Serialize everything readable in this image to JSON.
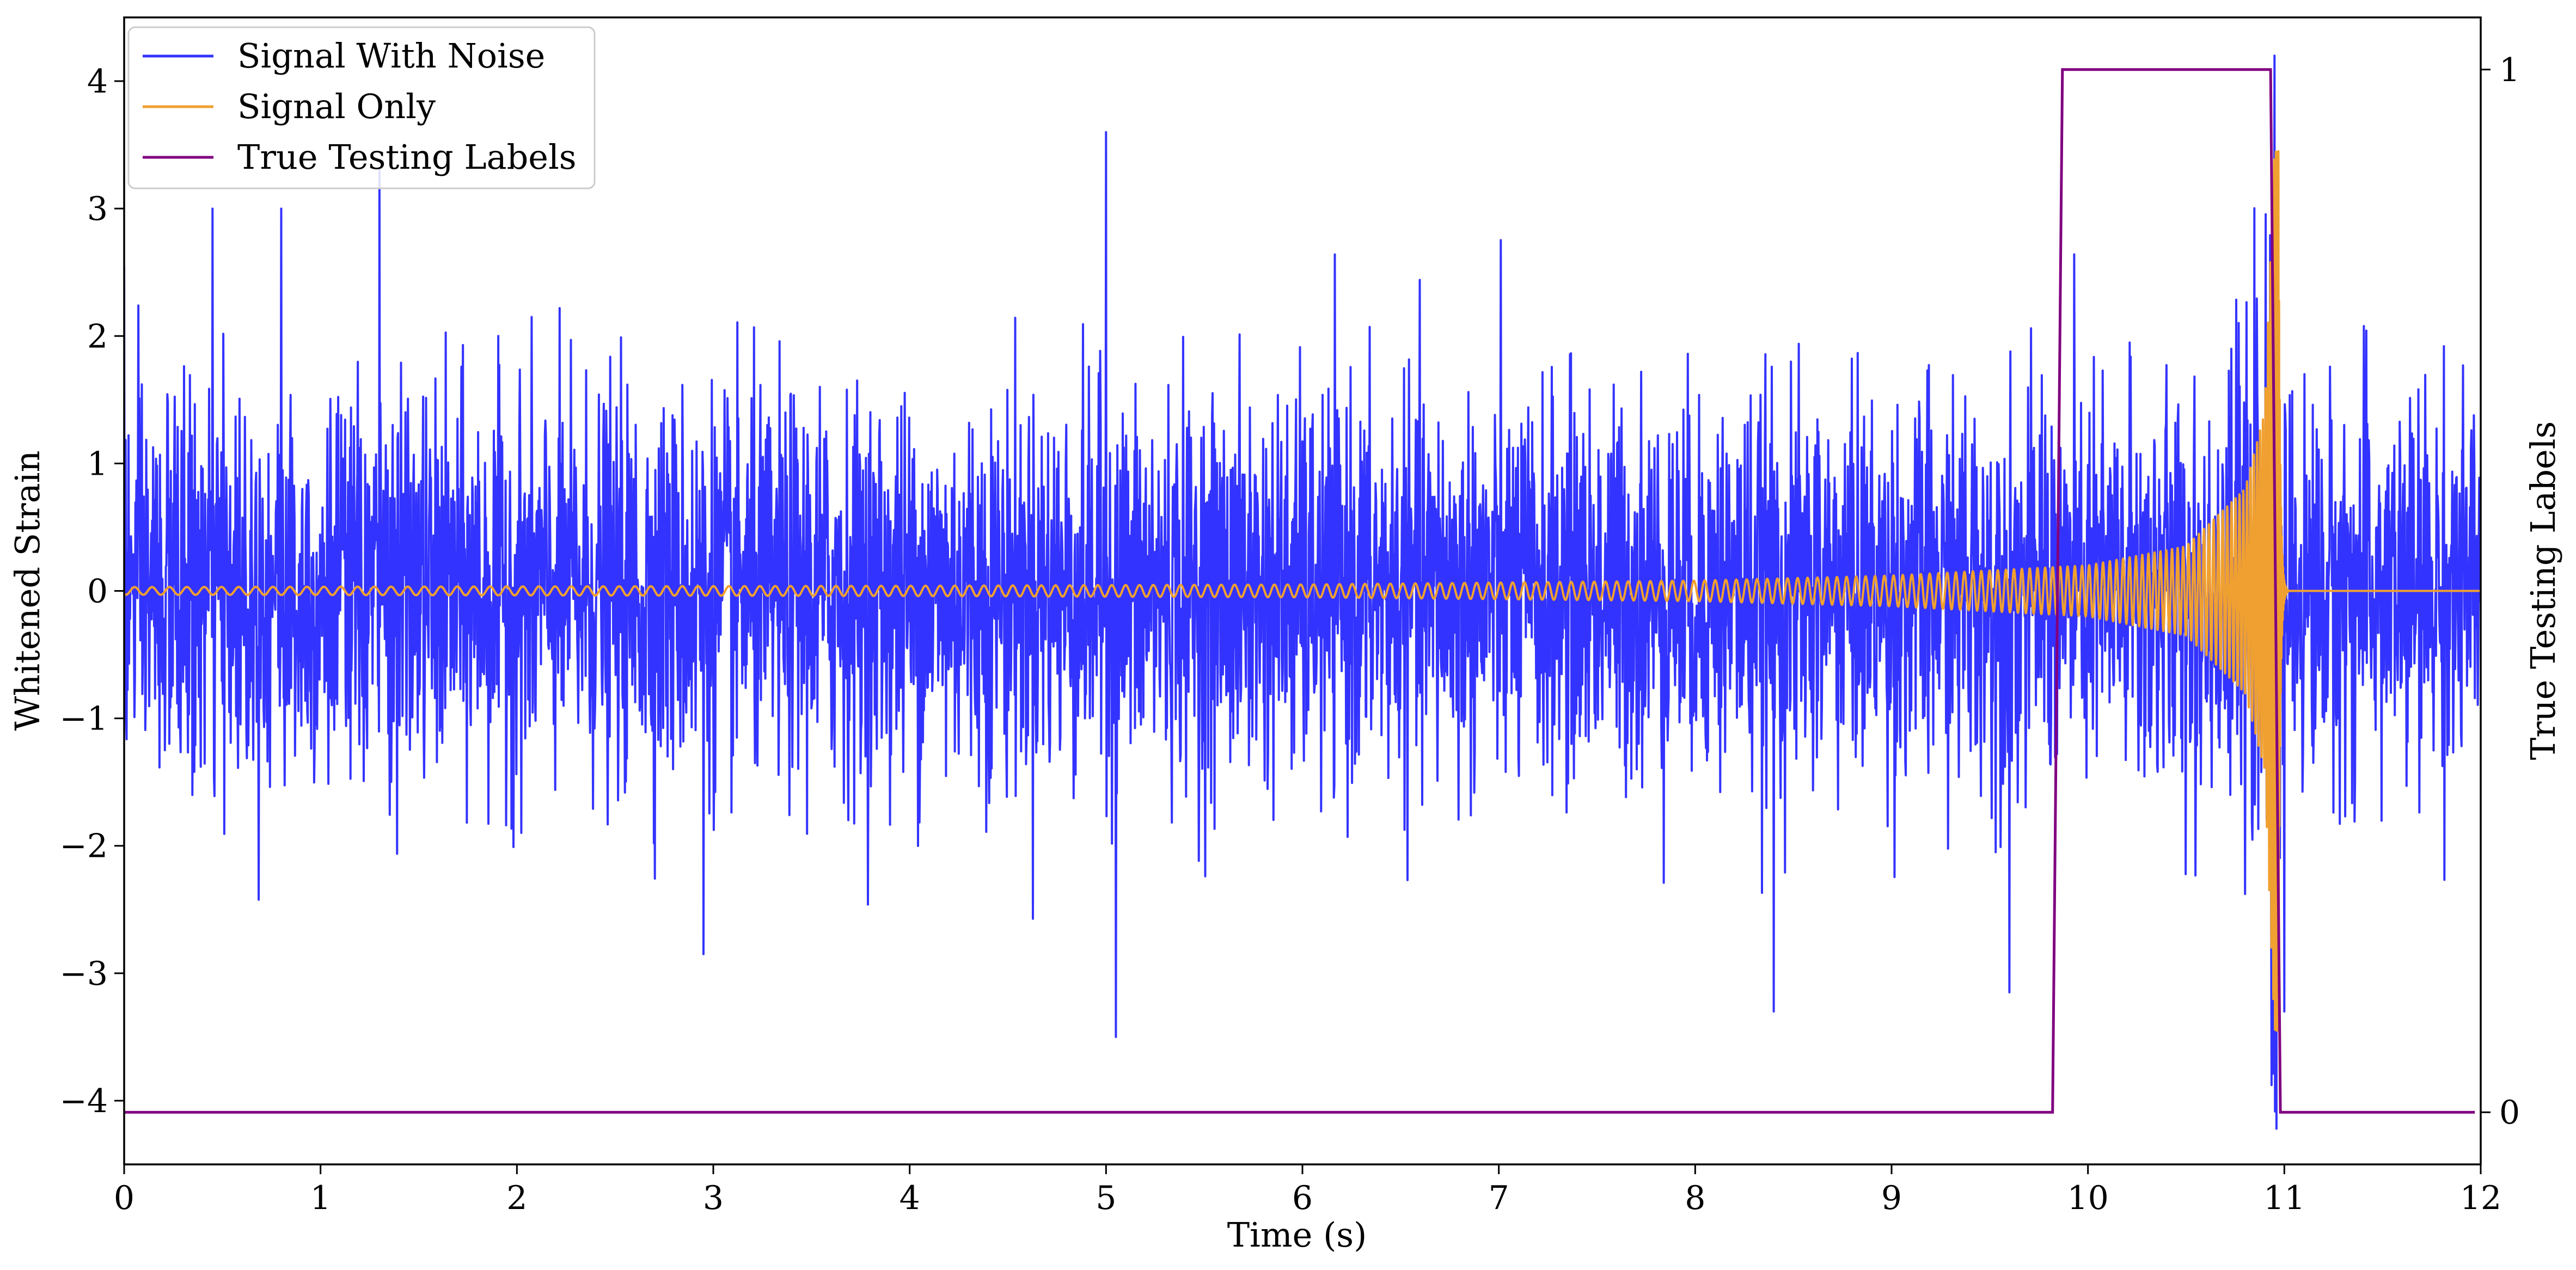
{
  "chart_data": {
    "type": "line",
    "xlabel": "Time (s)",
    "ylabel": "Whitened Strain",
    "y2label": "True Testing Labels",
    "xlim": [
      0,
      12
    ],
    "ylim": [
      -4.5,
      4.5
    ],
    "y2lim": [
      -0.05,
      1.05
    ],
    "x_ticks": [
      0,
      1,
      2,
      3,
      4,
      5,
      6,
      7,
      8,
      9,
      10,
      11,
      12
    ],
    "y_ticks": [
      -4,
      -3,
      -2,
      -1,
      0,
      1,
      2,
      3,
      4
    ],
    "y2_ticks": [
      0,
      1
    ],
    "legend_position": "upper-left",
    "grid": false,
    "series": [
      {
        "name": "Signal With Noise",
        "color": "#3333ff",
        "axis": "left",
        "sample_rate": 400,
        "noise_std": 0.75,
        "x_peaks": [
          0.0,
          0.45,
          0.8,
          1.3,
          2.95,
          5.0,
          5.05,
          8.4,
          9.6,
          10.95,
          11.0
        ],
        "y_peaks": [
          2.55,
          3.0,
          3.0,
          3.3,
          -2.85,
          3.6,
          -3.5,
          -3.3,
          -3.15,
          4.2,
          -3.3
        ]
      },
      {
        "name": "Signal Only",
        "color": "#f0a030",
        "axis": "left",
        "t_merger": 10.97,
        "ringdown_end": 11.02,
        "x_env": [
          0,
          4,
          6,
          8,
          9,
          10,
          10.5,
          10.8,
          10.9,
          10.95
        ],
        "y_env": [
          0.03,
          0.04,
          0.05,
          0.08,
          0.12,
          0.2,
          0.35,
          0.8,
          1.4,
          3.45
        ]
      },
      {
        "name": "True Testing Labels",
        "color": "#800080",
        "axis": "right",
        "x": [
          0,
          9.82,
          9.87,
          10.93,
          10.98,
          11.97
        ],
        "y": [
          0,
          0,
          1,
          1,
          0,
          0
        ]
      }
    ]
  }
}
